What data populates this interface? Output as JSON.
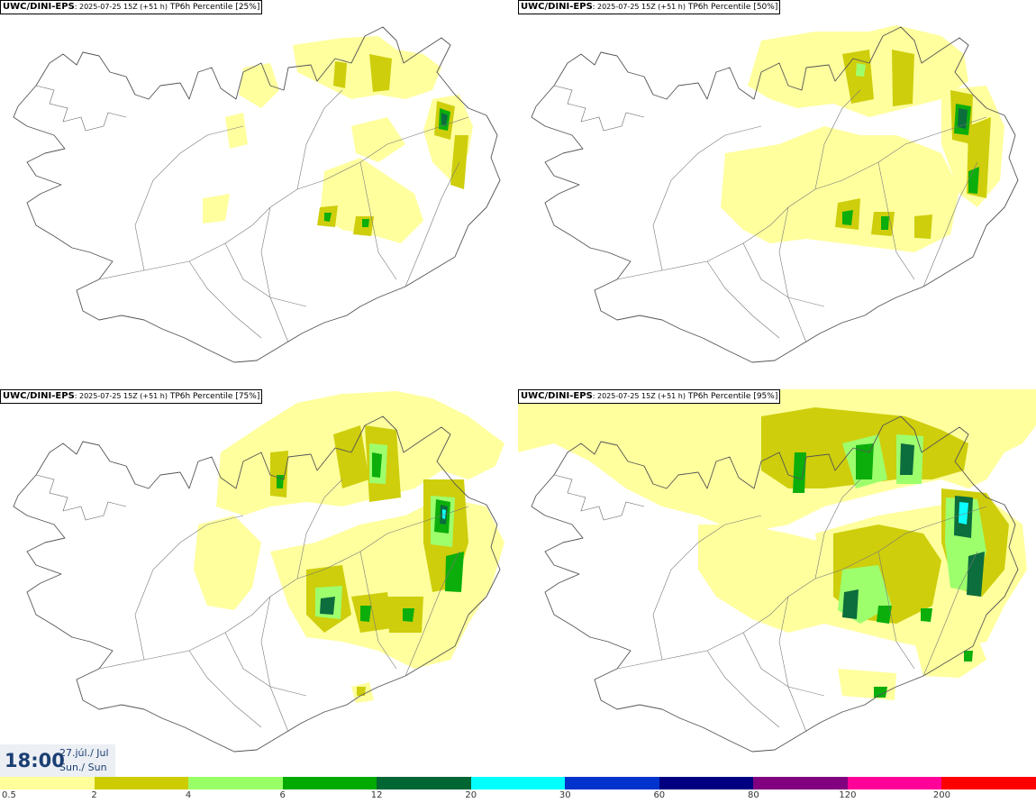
{
  "panels": [
    {
      "model": "UWC/DINI-EPS",
      "meta": ": 2025-07-25 15Z (+51 h)",
      "field": " TP6h Percentile [25%]",
      "level": 1
    },
    {
      "model": "UWC/DINI-EPS",
      "meta": ": 2025-07-25 15Z (+51 h)",
      "field": " TP6h Percentile [50%]",
      "level": 2
    },
    {
      "model": "UWC/DINI-EPS",
      "meta": ": 2025-07-25 15Z (+51 h)",
      "field": " TP6h Percentile [75%]",
      "level": 3
    },
    {
      "model": "UWC/DINI-EPS",
      "meta": ": 2025-07-25 15Z (+51 h)",
      "field": " TP6h Percentile [95%]",
      "level": 4
    }
  ],
  "valid_time": {
    "hour": "18:00",
    "date": "27.júl./ Jul",
    "weekday": "Sun./ Sun"
  },
  "legend": {
    "labels": [
      "0.5",
      "2",
      "4",
      "6",
      "12",
      "20",
      "30",
      "60",
      "80",
      "120",
      "200"
    ],
    "colors": [
      "#ffff99",
      "#cccc00",
      "#99ff66",
      "#00aa00",
      "#006633",
      "#00ffff",
      "#0033cc",
      "#000080",
      "#800080",
      "#ff0099",
      "#ff0000"
    ]
  },
  "colors": {
    "coastline": "#555555",
    "rivers_roads": "#777777",
    "timebox_bg": "#eceff4",
    "timebox_text": "#1b3f73"
  }
}
